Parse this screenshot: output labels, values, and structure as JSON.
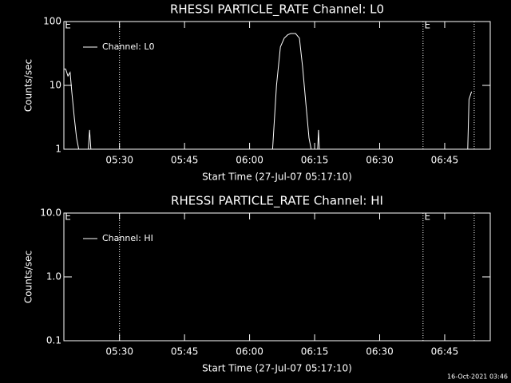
{
  "chart_data": [
    {
      "type": "line",
      "title": "RHESSI PARTICLE_RATE Channel: L0",
      "xlabel": "Start Time (27-Jul-07 05:17:10)",
      "ylabel": "Counts/sec",
      "xlim": [
        317.17,
        415.5
      ],
      "ylim": [
        1,
        100
      ],
      "log_y": true,
      "legend": "upper left",
      "xticks": [
        {
          "value": 330,
          "label": "05:30"
        },
        {
          "value": 345,
          "label": "05:45"
        },
        {
          "value": 360,
          "label": "06:00"
        },
        {
          "value": 375,
          "label": "06:15"
        },
        {
          "value": 390,
          "label": "06:30"
        },
        {
          "value": 405,
          "label": "06:45"
        }
      ],
      "yticks": [
        1,
        10,
        100
      ],
      "vlines": [
        330,
        400,
        411.8
      ],
      "annotations": [
        {
          "x": 317.4,
          "text": "E"
        },
        {
          "x": 400.3,
          "text": "E"
        }
      ],
      "x": [
        317.17,
        317.6,
        318.1,
        318.6,
        319.0,
        319.6,
        320.1,
        320.6,
        null,
        322.8,
        323.1,
        323.4,
        null,
        365.3,
        366.2,
        367.1,
        368.0,
        368.8,
        369.5,
        370.6,
        371.5,
        372.2,
        373.0,
        373.7,
        374.2,
        null,
        375.7,
        375.9,
        376.1,
        null,
        410.3,
        410.6,
        411.2
      ],
      "series": [
        {
          "name": "Channel: L0",
          "color": "#ffffff",
          "values": [
            18,
            18,
            14,
            16,
            8,
            3,
            1.5,
            1,
            null,
            1,
            2,
            1,
            null,
            1,
            10,
            40,
            55,
            62,
            65,
            65,
            55,
            20,
            5,
            1.5,
            1,
            null,
            1,
            2,
            1,
            null,
            1,
            6,
            8
          ]
        }
      ]
    },
    {
      "type": "line",
      "title": "RHESSI PARTICLE_RATE Channel: HI",
      "xlabel": "Start Time (27-Jul-07 05:17:10)",
      "ylabel": "Counts/sec",
      "xlim": [
        317.17,
        415.5
      ],
      "ylim": [
        0.1,
        10
      ],
      "log_y": true,
      "legend": "upper left",
      "xticks": [
        {
          "value": 330,
          "label": "05:30"
        },
        {
          "value": 345,
          "label": "05:45"
        },
        {
          "value": 360,
          "label": "06:00"
        },
        {
          "value": 375,
          "label": "06:15"
        },
        {
          "value": 390,
          "label": "06:30"
        },
        {
          "value": 405,
          "label": "06:45"
        }
      ],
      "yticks": [
        {
          "value": 0.1,
          "label": "0.1"
        },
        {
          "value": 1,
          "label": "1.0"
        },
        {
          "value": 10,
          "label": "10.0"
        }
      ],
      "vlines": [
        330,
        400,
        411.8
      ],
      "annotations": [
        {
          "x": 317.4,
          "text": "E"
        },
        {
          "x": 400.3,
          "text": "E"
        }
      ],
      "x": [],
      "series": [
        {
          "name": "Channel: HI",
          "color": "#ffffff",
          "values": []
        }
      ]
    }
  ],
  "footer": "16-Oct-2021 03:46"
}
